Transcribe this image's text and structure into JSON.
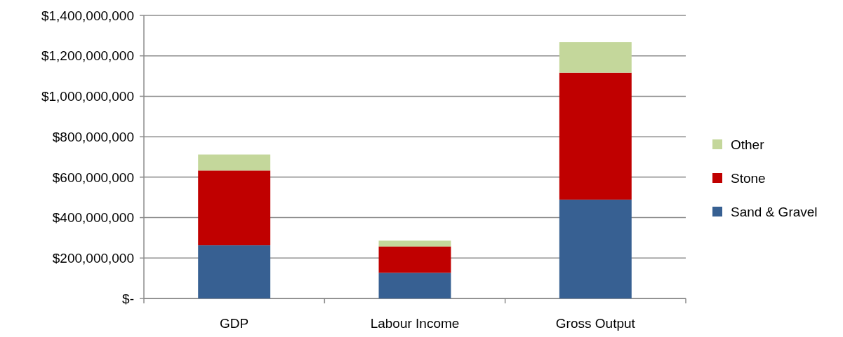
{
  "chart_data": {
    "type": "bar",
    "stacked": true,
    "categories": [
      "GDP",
      "Labour Income",
      "Gross Output"
    ],
    "series": [
      {
        "name": "Sand & Gravel",
        "color": "#376092",
        "values": [
          263000000,
          127000000,
          489000000
        ]
      },
      {
        "name": "Stone",
        "color": "#c00000",
        "values": [
          370000000,
          130000000,
          628000000
        ]
      },
      {
        "name": "Other",
        "color": "#c4d79b",
        "values": [
          79000000,
          29000000,
          151000000
        ]
      }
    ],
    "ylim": [
      0,
      1400000000
    ],
    "yticks": [
      {
        "value": 0,
        "label": "$-"
      },
      {
        "value": 200000000,
        "label": "$200,000,000"
      },
      {
        "value": 400000000,
        "label": "$400,000,000"
      },
      {
        "value": 600000000,
        "label": "$600,000,000"
      },
      {
        "value": 800000000,
        "label": "$800,000,000"
      },
      {
        "value": 1000000000,
        "label": "$1,000,000,000"
      },
      {
        "value": 1200000000,
        "label": "$1,200,000,000"
      },
      {
        "value": 1400000000,
        "label": "$1,400,000,000"
      }
    ],
    "grid": "y",
    "legend": "right"
  }
}
